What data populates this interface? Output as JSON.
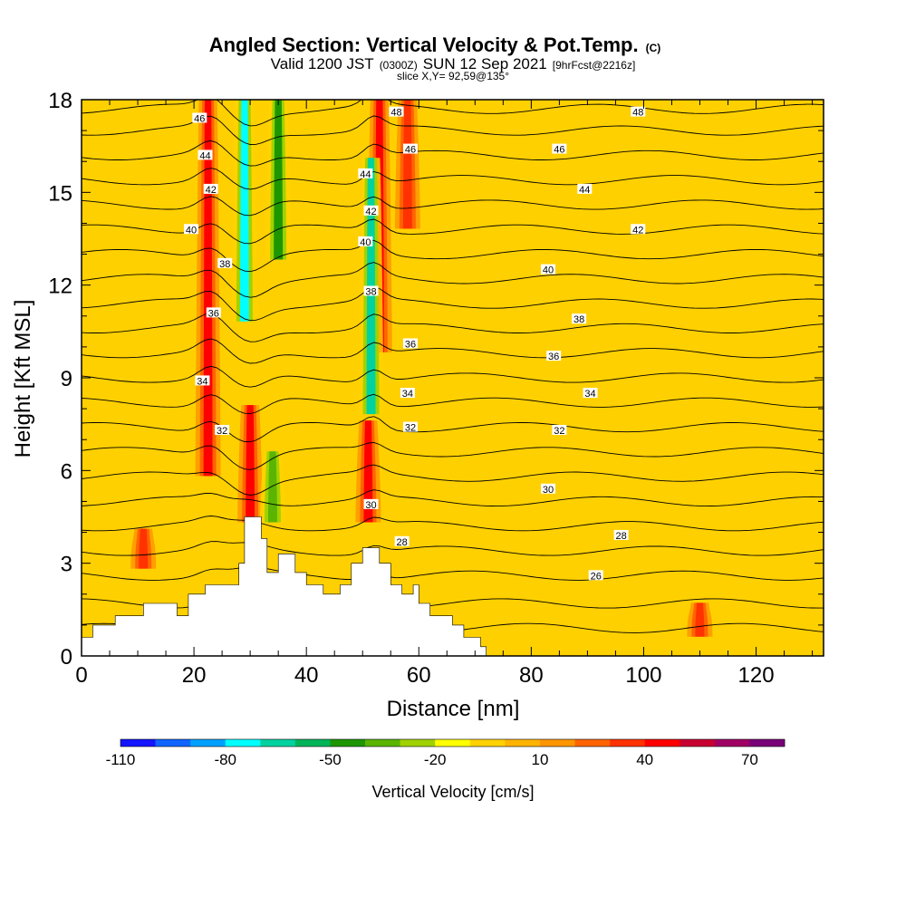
{
  "title": {
    "main": "Angled Section: Vertical Velocity & Pot.Temp.",
    "main_suffix": "(C)",
    "valid_a": "Valid 1200 JST",
    "valid_b": "(0300Z)",
    "valid_c": "SUN 12 Sep 2021",
    "valid_d": "[9hrFcst@2216z]",
    "slice": "slice X,Y= 92,59@135°"
  },
  "chart_data": {
    "type": "heatmap",
    "xlabel": "Distance [nm]",
    "ylabel": "Height [Kft MSL]",
    "xlim": [
      0,
      132
    ],
    "ylim": [
      0,
      18
    ],
    "x_ticks": [
      0,
      20,
      40,
      60,
      80,
      100,
      120
    ],
    "y_ticks": [
      0,
      3,
      6,
      9,
      12,
      15,
      18
    ],
    "grid": false,
    "colorbar": {
      "title": "Vertical Velocity [cm/s]",
      "bins": [
        -110,
        -100,
        -90,
        -80,
        -70,
        -60,
        -50,
        -40,
        -30,
        -20,
        -10,
        0,
        10,
        20,
        30,
        40,
        50,
        60,
        70,
        80
      ],
      "colors": [
        "#1414ff",
        "#0f64ff",
        "#00a0ff",
        "#00ffff",
        "#00d2a0",
        "#00b45a",
        "#1e9600",
        "#5ab400",
        "#a0d200",
        "#ffff00",
        "#ffd200",
        "#ffb400",
        "#ff9600",
        "#ff6400",
        "#ff3200",
        "#ff0000",
        "#c80032",
        "#a00064",
        "#780078"
      ],
      "tick_labels": [
        -110,
        -80,
        -50,
        -20,
        10,
        40,
        70
      ]
    },
    "velocity_features": [
      {
        "kind": "updraft",
        "x_center": 22.5,
        "height_range": [
          6,
          18
        ],
        "max_cm_s": 45
      },
      {
        "kind": "updraft",
        "x_center": 30,
        "height_range": [
          4.5,
          8
        ],
        "max_cm_s": 45
      },
      {
        "kind": "updraft",
        "x_center": 51,
        "height_range": [
          4.5,
          7.5
        ],
        "max_cm_s": 45
      },
      {
        "kind": "updraft",
        "x_center": 53,
        "height_range": [
          10,
          18
        ],
        "max_cm_s": 45
      },
      {
        "kind": "updraft",
        "x_center": 58,
        "height_range": [
          14,
          18
        ],
        "max_cm_s": 35
      },
      {
        "kind": "updraft",
        "x_center": 11,
        "height_range": [
          3,
          4
        ],
        "max_cm_s": 35
      },
      {
        "kind": "updraft",
        "x_center": 110,
        "height_range": [
          0.8,
          1.6
        ],
        "max_cm_s": 35
      },
      {
        "kind": "downdraft",
        "x_center": 29,
        "height_range": [
          11,
          18
        ],
        "max_cm_s": -75
      },
      {
        "kind": "downdraft",
        "x_center": 51.5,
        "height_range": [
          8,
          16
        ],
        "max_cm_s": -65
      },
      {
        "kind": "downdraft",
        "x_center": 35,
        "height_range": [
          13,
          18
        ],
        "max_cm_s": -50
      },
      {
        "kind": "downdraft",
        "x_center": 34,
        "height_range": [
          4.5,
          6.5
        ],
        "max_cm_s": -40
      }
    ],
    "contour_labels": [
      {
        "label": "46",
        "x": 21,
        "y": 17.4
      },
      {
        "label": "44",
        "x": 22,
        "y": 16.2
      },
      {
        "label": "42",
        "x": 23,
        "y": 15.1
      },
      {
        "label": "40",
        "x": 19.5,
        "y": 13.8
      },
      {
        "label": "38",
        "x": 25.5,
        "y": 12.7
      },
      {
        "label": "36",
        "x": 23.5,
        "y": 11.1
      },
      {
        "label": "34",
        "x": 21.5,
        "y": 8.9
      },
      {
        "label": "32",
        "x": 25,
        "y": 7.3
      },
      {
        "label": "48",
        "x": 56,
        "y": 17.6
      },
      {
        "label": "46",
        "x": 58.5,
        "y": 16.4
      },
      {
        "label": "44",
        "x": 50.5,
        "y": 15.6
      },
      {
        "label": "42",
        "x": 51.5,
        "y": 14.4
      },
      {
        "label": "40",
        "x": 50.5,
        "y": 13.4
      },
      {
        "label": "38",
        "x": 51.5,
        "y": 11.8
      },
      {
        "label": "36",
        "x": 58.5,
        "y": 10.1
      },
      {
        "label": "34",
        "x": 58,
        "y": 8.5
      },
      {
        "label": "32",
        "x": 58.5,
        "y": 7.4
      },
      {
        "label": "30",
        "x": 51.5,
        "y": 4.9
      },
      {
        "label": "28",
        "x": 57,
        "y": 3.7
      },
      {
        "label": "48",
        "x": 99,
        "y": 17.6
      },
      {
        "label": "46",
        "x": 85,
        "y": 16.4
      },
      {
        "label": "44",
        "x": 89.5,
        "y": 15.1
      },
      {
        "label": "42",
        "x": 99,
        "y": 13.8
      },
      {
        "label": "40",
        "x": 83,
        "y": 12.5
      },
      {
        "label": "38",
        "x": 88.5,
        "y": 10.9
      },
      {
        "label": "36",
        "x": 84,
        "y": 9.7
      },
      {
        "label": "34",
        "x": 90.5,
        "y": 8.5
      },
      {
        "label": "32",
        "x": 85,
        "y": 7.3
      },
      {
        "label": "30",
        "x": 83,
        "y": 5.4
      },
      {
        "label": "28",
        "x": 96,
        "y": 3.9
      },
      {
        "label": "26",
        "x": 91.5,
        "y": 2.6
      }
    ]
  }
}
